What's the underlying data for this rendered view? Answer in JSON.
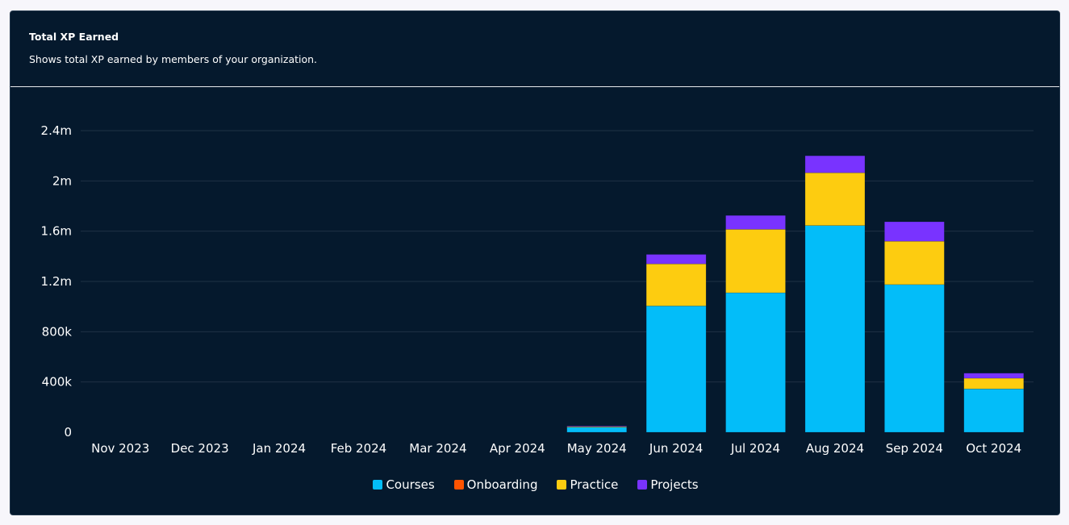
{
  "card": {
    "title": "Total XP Earned",
    "subtitle": "Shows total XP earned by members of your organization."
  },
  "chart_data": {
    "type": "bar",
    "stacked": true,
    "categories": [
      "Nov 2023",
      "Dec 2023",
      "Jan 2024",
      "Feb 2024",
      "Mar 2024",
      "Apr 2024",
      "May 2024",
      "Jun 2024",
      "Jul 2024",
      "Aug 2024",
      "Sep 2024",
      "Oct 2024"
    ],
    "series": [
      {
        "name": "Courses",
        "color": "#03bdf9",
        "values": [
          0,
          0,
          0,
          0,
          0,
          0,
          40000,
          1005000,
          1110000,
          1645000,
          1175000,
          345000
        ]
      },
      {
        "name": "Onboarding",
        "color": "#ff5400",
        "values": [
          0,
          0,
          0,
          0,
          0,
          0,
          0,
          0,
          0,
          0,
          0,
          0
        ]
      },
      {
        "name": "Practice",
        "color": "#fdcc10",
        "values": [
          0,
          0,
          0,
          0,
          0,
          0,
          5000,
          335000,
          505000,
          420000,
          345000,
          85000
        ]
      },
      {
        "name": "Projects",
        "color": "#7933ff",
        "values": [
          0,
          0,
          0,
          0,
          0,
          0,
          5000,
          75000,
          110000,
          135000,
          155000,
          40000
        ]
      }
    ],
    "y_ticks": [
      0,
      400000,
      800000,
      1200000,
      1600000,
      2000000,
      2400000
    ],
    "y_tick_labels": [
      "0",
      "400k",
      "800k",
      "1.2m",
      "1.6m",
      "2m",
      "2.4m"
    ],
    "ylim": [
      0,
      2400000
    ],
    "grid": true,
    "legend_position": "bottom-center"
  }
}
